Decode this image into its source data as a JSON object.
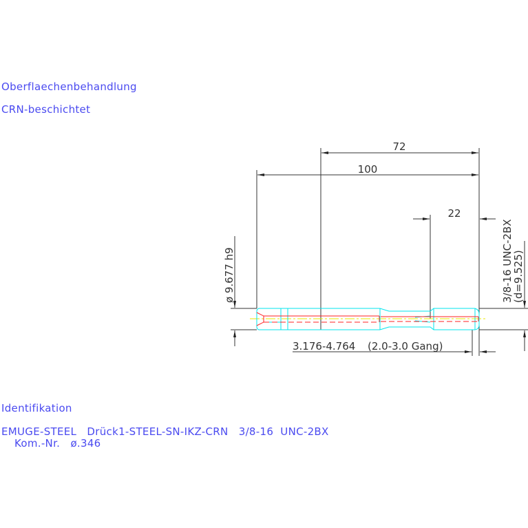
{
  "surface": {
    "heading": "Oberflaechenbehandlung",
    "value": "CRN-beschichtet"
  },
  "drawing": {
    "dim_thread_length": "72",
    "dim_total_length": "100",
    "dim_thread_part": "22",
    "dim_shank_diameter": "ø 9.677 h9",
    "dim_thread_spec": "3/8-16 UNC-2BX",
    "dim_thread_diameter": "(d=9.525)",
    "dim_bore": "3.176-4.764",
    "dim_gang": "(2.0-3.0 Gang)",
    "colors": {
      "outline": "#00e5ee",
      "hidden": "#ff2020",
      "centerline": "#e8e800",
      "dimension": "#333333",
      "text": "#4a4af0"
    }
  },
  "identification": {
    "heading": "Identifikation",
    "line1": "EMUGE-STEEL   Drück1-STEEL-SN-IKZ-CRN   3/8-16  UNC-2BX",
    "line2": "Kom.-Nr.   ø.346"
  }
}
